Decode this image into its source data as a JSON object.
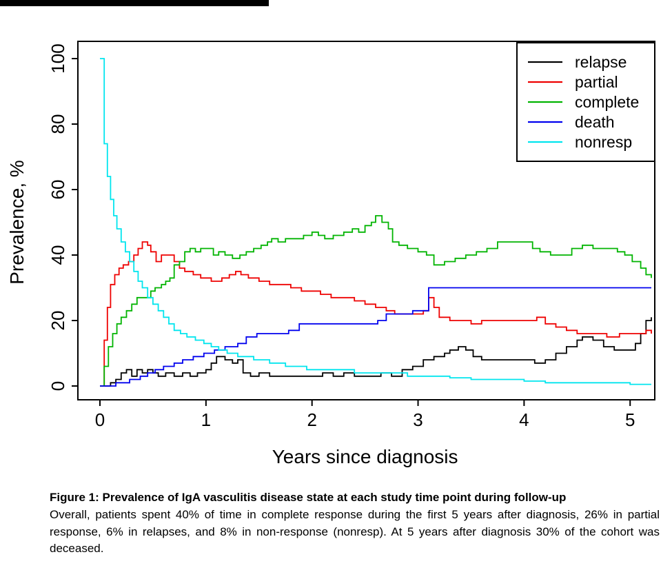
{
  "chart_data": {
    "type": "line",
    "step": true,
    "title": "",
    "xlabel": "Years since diagnosis",
    "ylabel": "Prevalence, %",
    "xlim": [
      0,
      5.2
    ],
    "ylim": [
      0,
      100
    ],
    "xticks": [
      0,
      1,
      2,
      3,
      4,
      5
    ],
    "yticks": [
      0,
      20,
      40,
      60,
      80,
      100
    ],
    "grid": false,
    "legend_position": "top-right",
    "series": [
      {
        "name": "relapse",
        "color": "#000000",
        "points": [
          [
            0,
            0
          ],
          [
            0.1,
            1
          ],
          [
            0.15,
            2
          ],
          [
            0.2,
            4
          ],
          [
            0.25,
            5
          ],
          [
            0.3,
            3
          ],
          [
            0.35,
            5
          ],
          [
            0.4,
            4
          ],
          [
            0.45,
            5
          ],
          [
            0.5,
            4
          ],
          [
            0.55,
            3
          ],
          [
            0.62,
            4
          ],
          [
            0.7,
            3
          ],
          [
            0.78,
            4
          ],
          [
            0.85,
            3
          ],
          [
            0.92,
            4
          ],
          [
            1.0,
            5
          ],
          [
            1.05,
            7
          ],
          [
            1.1,
            9
          ],
          [
            1.18,
            8
          ],
          [
            1.25,
            7
          ],
          [
            1.3,
            8
          ],
          [
            1.35,
            4
          ],
          [
            1.42,
            3
          ],
          [
            1.5,
            4
          ],
          [
            1.6,
            3
          ],
          [
            1.75,
            3
          ],
          [
            1.9,
            3
          ],
          [
            2.0,
            3
          ],
          [
            2.1,
            4
          ],
          [
            2.2,
            3
          ],
          [
            2.3,
            4
          ],
          [
            2.4,
            3
          ],
          [
            2.55,
            3
          ],
          [
            2.65,
            4
          ],
          [
            2.75,
            3
          ],
          [
            2.85,
            5
          ],
          [
            2.95,
            6
          ],
          [
            3.05,
            8
          ],
          [
            3.15,
            9
          ],
          [
            3.25,
            10
          ],
          [
            3.3,
            11
          ],
          [
            3.38,
            12
          ],
          [
            3.45,
            11
          ],
          [
            3.52,
            9
          ],
          [
            3.6,
            8
          ],
          [
            3.8,
            8
          ],
          [
            4.0,
            8
          ],
          [
            4.1,
            7
          ],
          [
            4.2,
            8
          ],
          [
            4.3,
            10
          ],
          [
            4.4,
            12
          ],
          [
            4.5,
            14
          ],
          [
            4.55,
            15
          ],
          [
            4.65,
            14
          ],
          [
            4.75,
            12
          ],
          [
            4.85,
            11
          ],
          [
            5.0,
            11
          ],
          [
            5.05,
            13
          ],
          [
            5.1,
            16
          ],
          [
            5.15,
            20
          ],
          [
            5.2,
            21
          ]
        ]
      },
      {
        "name": "partial",
        "color": "#ee0000",
        "points": [
          [
            0,
            0
          ],
          [
            0.04,
            14
          ],
          [
            0.07,
            24
          ],
          [
            0.1,
            31
          ],
          [
            0.14,
            34
          ],
          [
            0.18,
            36
          ],
          [
            0.22,
            37
          ],
          [
            0.27,
            38
          ],
          [
            0.32,
            40
          ],
          [
            0.36,
            42
          ],
          [
            0.4,
            44
          ],
          [
            0.45,
            43
          ],
          [
            0.48,
            41
          ],
          [
            0.53,
            38
          ],
          [
            0.58,
            40
          ],
          [
            0.65,
            40
          ],
          [
            0.7,
            38
          ],
          [
            0.75,
            36
          ],
          [
            0.8,
            35
          ],
          [
            0.88,
            34
          ],
          [
            0.95,
            33
          ],
          [
            1.05,
            32
          ],
          [
            1.15,
            33
          ],
          [
            1.22,
            34
          ],
          [
            1.28,
            35
          ],
          [
            1.33,
            34
          ],
          [
            1.4,
            33
          ],
          [
            1.5,
            32
          ],
          [
            1.6,
            31
          ],
          [
            1.72,
            31
          ],
          [
            1.8,
            30
          ],
          [
            1.9,
            29
          ],
          [
            2.0,
            29
          ],
          [
            2.08,
            28
          ],
          [
            2.18,
            27
          ],
          [
            2.3,
            27
          ],
          [
            2.4,
            26
          ],
          [
            2.5,
            25
          ],
          [
            2.6,
            24
          ],
          [
            2.7,
            23
          ],
          [
            2.78,
            22
          ],
          [
            2.9,
            22
          ],
          [
            3.0,
            22
          ],
          [
            3.05,
            23
          ],
          [
            3.1,
            27
          ],
          [
            3.15,
            24
          ],
          [
            3.2,
            21
          ],
          [
            3.3,
            20
          ],
          [
            3.42,
            20
          ],
          [
            3.5,
            19
          ],
          [
            3.6,
            20
          ],
          [
            3.75,
            20
          ],
          [
            3.9,
            20
          ],
          [
            4.05,
            20
          ],
          [
            4.12,
            21
          ],
          [
            4.2,
            19
          ],
          [
            4.3,
            18
          ],
          [
            4.4,
            17
          ],
          [
            4.5,
            16
          ],
          [
            4.65,
            16
          ],
          [
            4.78,
            15
          ],
          [
            4.9,
            16
          ],
          [
            5.0,
            16
          ],
          [
            5.1,
            16
          ],
          [
            5.15,
            17
          ],
          [
            5.2,
            16
          ]
        ]
      },
      {
        "name": "complete",
        "color": "#00b400",
        "points": [
          [
            0,
            0
          ],
          [
            0.04,
            6
          ],
          [
            0.08,
            12
          ],
          [
            0.12,
            16
          ],
          [
            0.16,
            19
          ],
          [
            0.2,
            21
          ],
          [
            0.25,
            23
          ],
          [
            0.3,
            25
          ],
          [
            0.35,
            27
          ],
          [
            0.42,
            27
          ],
          [
            0.48,
            29
          ],
          [
            0.52,
            30
          ],
          [
            0.58,
            31
          ],
          [
            0.62,
            32
          ],
          [
            0.66,
            33
          ],
          [
            0.7,
            37
          ],
          [
            0.75,
            38
          ],
          [
            0.8,
            41
          ],
          [
            0.85,
            42
          ],
          [
            0.9,
            41
          ],
          [
            0.95,
            42
          ],
          [
            1.02,
            42
          ],
          [
            1.07,
            40
          ],
          [
            1.12,
            41
          ],
          [
            1.18,
            40
          ],
          [
            1.25,
            39
          ],
          [
            1.32,
            40
          ],
          [
            1.38,
            41
          ],
          [
            1.45,
            42
          ],
          [
            1.52,
            43
          ],
          [
            1.58,
            44
          ],
          [
            1.62,
            45
          ],
          [
            1.68,
            44
          ],
          [
            1.75,
            45
          ],
          [
            1.85,
            45
          ],
          [
            1.92,
            46
          ],
          [
            2.0,
            47
          ],
          [
            2.06,
            46
          ],
          [
            2.12,
            45
          ],
          [
            2.2,
            46
          ],
          [
            2.3,
            47
          ],
          [
            2.38,
            48
          ],
          [
            2.44,
            47
          ],
          [
            2.5,
            49
          ],
          [
            2.56,
            50
          ],
          [
            2.6,
            52
          ],
          [
            2.66,
            50
          ],
          [
            2.72,
            48
          ],
          [
            2.76,
            44
          ],
          [
            2.82,
            43
          ],
          [
            2.9,
            42
          ],
          [
            3.0,
            41
          ],
          [
            3.08,
            40
          ],
          [
            3.15,
            37
          ],
          [
            3.25,
            38
          ],
          [
            3.35,
            39
          ],
          [
            3.45,
            40
          ],
          [
            3.55,
            41
          ],
          [
            3.65,
            42
          ],
          [
            3.75,
            44
          ],
          [
            3.9,
            44
          ],
          [
            4.0,
            44
          ],
          [
            4.08,
            42
          ],
          [
            4.15,
            41
          ],
          [
            4.25,
            40
          ],
          [
            4.38,
            40
          ],
          [
            4.45,
            42
          ],
          [
            4.55,
            43
          ],
          [
            4.65,
            42
          ],
          [
            4.78,
            42
          ],
          [
            4.88,
            41
          ],
          [
            4.95,
            40
          ],
          [
            5.02,
            38
          ],
          [
            5.1,
            36
          ],
          [
            5.15,
            34
          ],
          [
            5.2,
            33
          ]
        ]
      },
      {
        "name": "death",
        "color": "#0000ee",
        "points": [
          [
            0,
            0
          ],
          [
            0.15,
            1
          ],
          [
            0.28,
            2
          ],
          [
            0.38,
            3
          ],
          [
            0.45,
            4
          ],
          [
            0.52,
            5
          ],
          [
            0.6,
            6
          ],
          [
            0.7,
            7
          ],
          [
            0.78,
            8
          ],
          [
            0.88,
            9
          ],
          [
            0.98,
            10
          ],
          [
            1.08,
            11
          ],
          [
            1.18,
            12
          ],
          [
            1.3,
            13
          ],
          [
            1.38,
            15
          ],
          [
            1.48,
            16
          ],
          [
            1.68,
            16
          ],
          [
            1.78,
            17
          ],
          [
            1.88,
            19
          ],
          [
            2.1,
            19
          ],
          [
            2.45,
            19
          ],
          [
            2.62,
            20
          ],
          [
            2.7,
            22
          ],
          [
            2.85,
            22
          ],
          [
            2.95,
            23
          ],
          [
            3.1,
            30
          ],
          [
            5.2,
            30
          ]
        ]
      },
      {
        "name": "nonresp",
        "color": "#00e5ee",
        "points": [
          [
            0,
            100
          ],
          [
            0.04,
            74
          ],
          [
            0.07,
            64
          ],
          [
            0.1,
            57
          ],
          [
            0.13,
            52
          ],
          [
            0.16,
            48
          ],
          [
            0.2,
            44
          ],
          [
            0.24,
            41
          ],
          [
            0.28,
            38
          ],
          [
            0.32,
            35
          ],
          [
            0.36,
            32
          ],
          [
            0.4,
            30
          ],
          [
            0.45,
            27
          ],
          [
            0.5,
            25
          ],
          [
            0.55,
            23
          ],
          [
            0.6,
            21
          ],
          [
            0.65,
            19
          ],
          [
            0.7,
            17
          ],
          [
            0.76,
            16
          ],
          [
            0.82,
            15
          ],
          [
            0.9,
            14
          ],
          [
            0.98,
            13
          ],
          [
            1.05,
            12
          ],
          [
            1.12,
            11
          ],
          [
            1.2,
            10
          ],
          [
            1.3,
            9
          ],
          [
            1.45,
            8
          ],
          [
            1.6,
            7
          ],
          [
            1.75,
            6
          ],
          [
            1.95,
            5
          ],
          [
            2.2,
            5
          ],
          [
            2.4,
            4
          ],
          [
            2.7,
            4
          ],
          [
            2.9,
            3
          ],
          [
            3.1,
            3
          ],
          [
            3.3,
            2.5
          ],
          [
            3.5,
            2
          ],
          [
            3.8,
            2
          ],
          [
            4.0,
            1.5
          ],
          [
            4.2,
            1
          ],
          [
            4.5,
            1
          ],
          [
            4.8,
            1
          ],
          [
            5.0,
            0.5
          ],
          [
            5.2,
            0.5
          ]
        ]
      }
    ]
  },
  "caption": {
    "title": "Figure 1: Prevalence of IgA vasculitis disease state at each study time point during follow-up",
    "body": "Overall, patients spent 40% of time in complete response during the first 5 years after diagnosis, 26% in partial response, 6% in relapses, and 8% in non-response (nonresp). At 5 years after diagnosis 30% of the cohort was deceased."
  }
}
